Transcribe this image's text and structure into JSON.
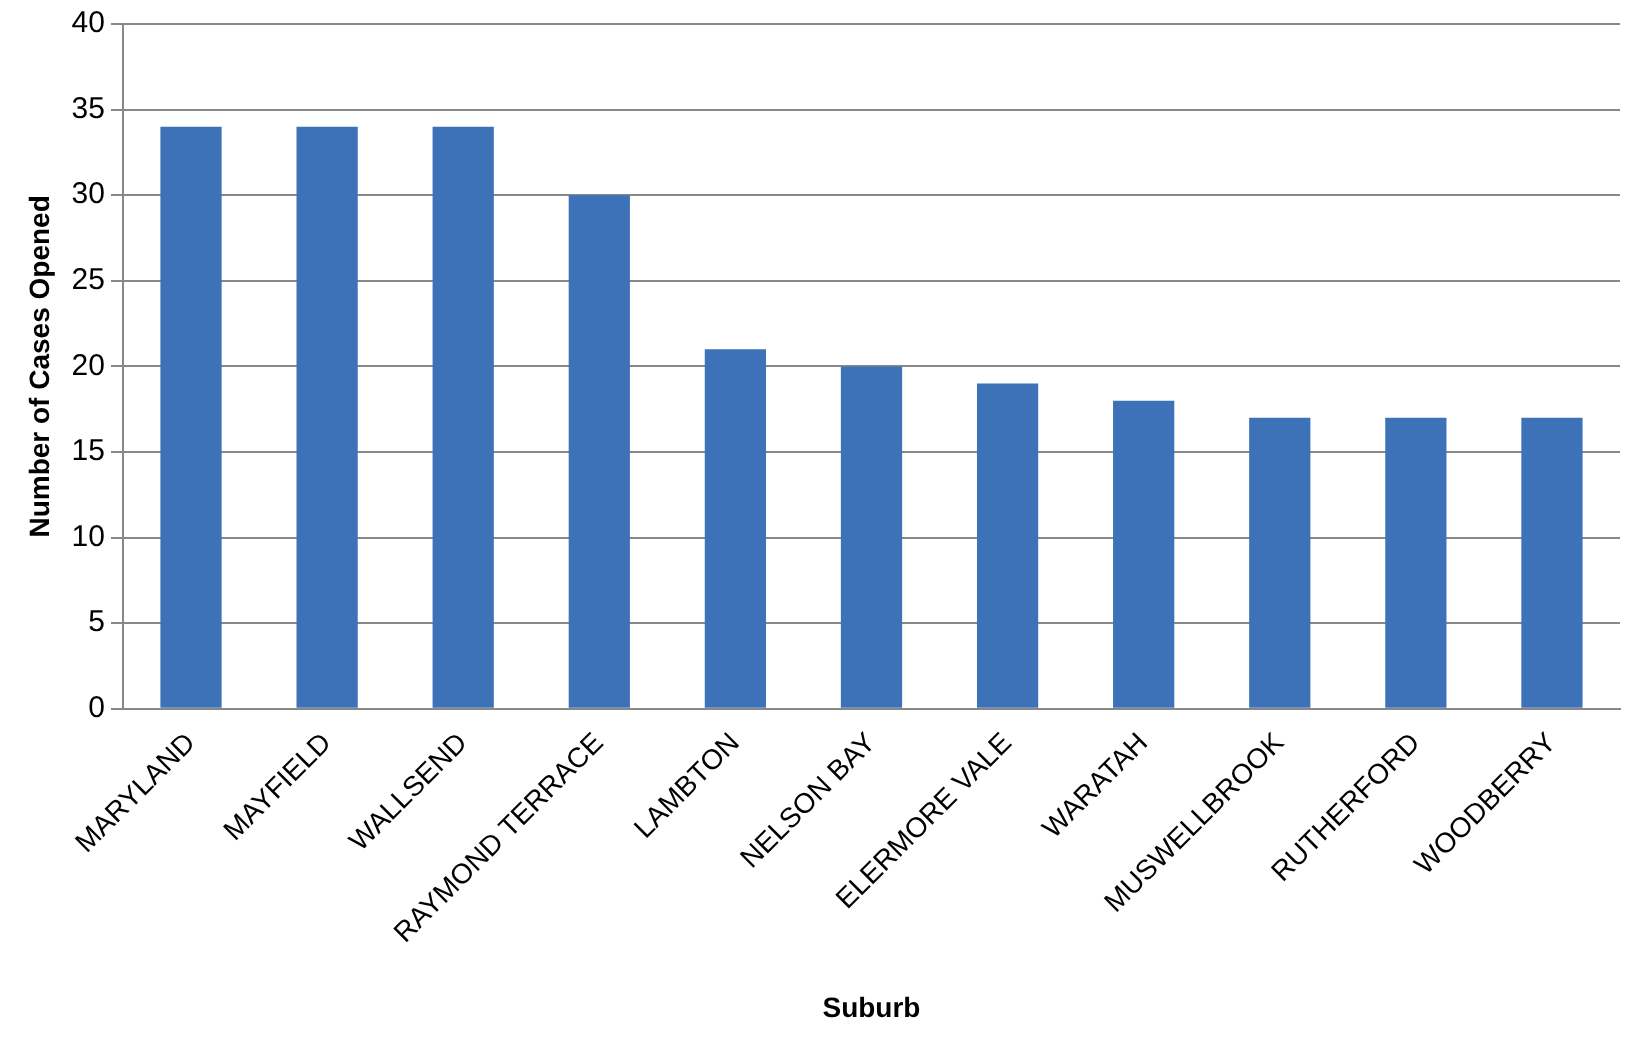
{
  "chart_data": {
    "type": "bar",
    "xlabel": "Suburb",
    "ylabel": "Number of Cases Opened",
    "categories": [
      "MARYLAND",
      "MAYFIELD",
      "WALLSEND",
      "RAYMOND TERRACE",
      "LAMBTON",
      "NELSON BAY",
      "ELERMORE VALE",
      "WARATAH",
      "MUSWELLBROOK",
      "RUTHERFORD",
      "WOODBERRY"
    ],
    "values": [
      34,
      34,
      34,
      30,
      21,
      20,
      19,
      18,
      17,
      17,
      17
    ],
    "color": "#3d72b8",
    "ylim": [
      0,
      40
    ],
    "yticks": [
      0,
      5,
      10,
      15,
      20,
      25,
      30,
      35,
      40
    ],
    "grid": "y"
  }
}
